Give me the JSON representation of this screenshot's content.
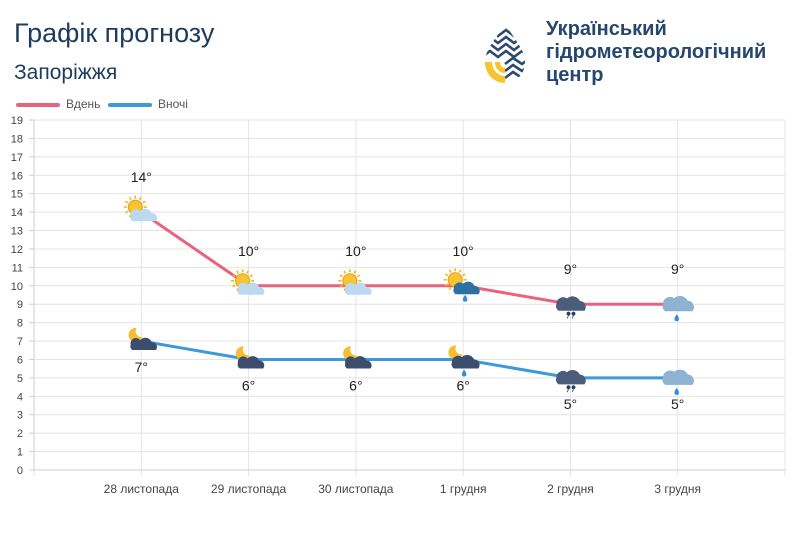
{
  "header": {
    "title": "Графік прогнозу",
    "city": "Запоріжжя"
  },
  "organization": {
    "name_lines": [
      "Український",
      "гідрометеорологічний",
      "центр"
    ],
    "logo_icon": "droplet-logo-icon",
    "colors": {
      "text": "#26466d",
      "logo_dark": "#2c4a6e",
      "logo_yellow": "#f4c431"
    }
  },
  "chart_data": {
    "type": "line",
    "categories": [
      "28 листопада",
      "29 листопада",
      "30 листопада",
      "1 грудня",
      "2 грудня",
      "3 грудня"
    ],
    "series": [
      {
        "name": "Вдень",
        "color": "#e8637d",
        "values": [
          14,
          10,
          10,
          10,
          9,
          9
        ],
        "labels": [
          "14°",
          "10°",
          "10°",
          "10°",
          "9°",
          "9°"
        ],
        "icons": [
          "partly-cloudy-day-icon",
          "partly-cloudy-day-icon",
          "partly-cloudy-day-icon",
          "partly-cloudy-rain-day-icon",
          "cloudy-drizzle-icon",
          "cloudy-rain-icon"
        ]
      },
      {
        "name": "Вночі",
        "color": "#3d9ad8",
        "values": [
          7,
          6,
          6,
          6,
          5,
          5
        ],
        "labels": [
          "7°",
          "6°",
          "6°",
          "6°",
          "5°",
          "5°"
        ],
        "icons": [
          "cloudy-night-icon",
          "cloudy-night-icon",
          "cloudy-night-icon",
          "cloudy-rain-night-icon",
          "cloudy-drizzle-icon",
          "cloudy-rain-icon"
        ]
      }
    ],
    "ylim": [
      0,
      19
    ],
    "yticks": [
      "0",
      "1",
      "2",
      "3",
      "4",
      "5",
      "6",
      "7",
      "8",
      "9",
      "10",
      "11",
      "12",
      "13",
      "14",
      "15",
      "16",
      "17",
      "18",
      "19"
    ],
    "grid": true,
    "legend": "top-left"
  }
}
